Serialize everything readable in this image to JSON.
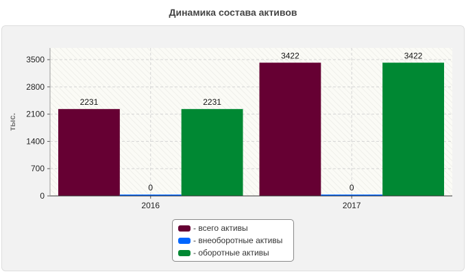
{
  "chart_data": {
    "type": "bar",
    "title": "Динамика состава активов",
    "ylabel": "тыс.",
    "xlabel": "",
    "categories": [
      "2016",
      "2017"
    ],
    "ylim": [
      0,
      3800
    ],
    "yticks": [
      0,
      700,
      1400,
      2100,
      2800,
      3500
    ],
    "grid": true,
    "legend_position": "bottom",
    "series": [
      {
        "name": "- всего активы",
        "values": [
          2231,
          3422
        ],
        "color": "#660033"
      },
      {
        "name": "- внеоборотные активы",
        "values": [
          0,
          0
        ],
        "color": "#0066ff"
      },
      {
        "name": "- оборотные активы",
        "values": [
          2231,
          3422
        ],
        "color": "#008833"
      }
    ]
  }
}
